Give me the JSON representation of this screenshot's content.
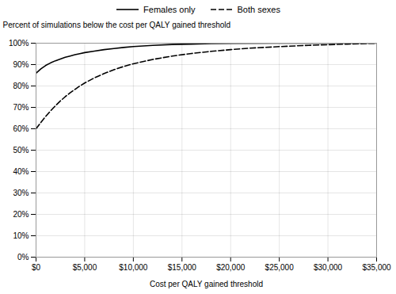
{
  "chart_data": {
    "type": "line",
    "xlabel": "Cost per QALY gained threshold",
    "ylabel": "Percent of simulations below the cost per QALY gained threshold",
    "series": [
      {
        "name": "Females only",
        "color": "#000000",
        "line_style": "solid",
        "x": [
          0,
          500,
          1000,
          1500,
          2000,
          2500,
          3000,
          3500,
          4000,
          4500,
          5000,
          6000,
          7000,
          8000,
          9000,
          10000,
          12000,
          14000,
          16000,
          18000,
          20000,
          25000,
          30000,
          35000
        ],
        "values": [
          0.86,
          0.88,
          0.896,
          0.908,
          0.918,
          0.926,
          0.934,
          0.94,
          0.946,
          0.951,
          0.956,
          0.963,
          0.97,
          0.975,
          0.98,
          0.984,
          0.99,
          0.994,
          0.996,
          0.998,
          0.999,
          1.0,
          1.0,
          1.0
        ]
      },
      {
        "name": "Both sexes",
        "color": "#000000",
        "line_style": "dashed",
        "x": [
          0,
          500,
          1000,
          1500,
          2000,
          2500,
          3000,
          3500,
          4000,
          4500,
          5000,
          6000,
          7000,
          8000,
          9000,
          10000,
          12000,
          14000,
          16000,
          18000,
          20000,
          22000,
          25000,
          28000,
          30000,
          32000,
          35000
        ],
        "values": [
          0.6,
          0.63,
          0.658,
          0.684,
          0.708,
          0.73,
          0.75,
          0.768,
          0.784,
          0.8,
          0.814,
          0.838,
          0.858,
          0.876,
          0.891,
          0.904,
          0.924,
          0.94,
          0.952,
          0.962,
          0.97,
          0.977,
          0.984,
          0.99,
          0.993,
          0.996,
          1.0
        ]
      }
    ],
    "xlim": [
      0,
      35000
    ],
    "ylim": [
      0,
      1.0
    ],
    "xticks": [
      {
        "value": 0,
        "label": "$0"
      },
      {
        "value": 5000,
        "label": "$5,000"
      },
      {
        "value": 10000,
        "label": "$10,000"
      },
      {
        "value": 15000,
        "label": "$15,000"
      },
      {
        "value": 20000,
        "label": "$20,000"
      },
      {
        "value": 25000,
        "label": "$25,000"
      },
      {
        "value": 30000,
        "label": "$30,000"
      },
      {
        "value": 35000,
        "label": "$35,000"
      }
    ],
    "yticks": [
      {
        "value": 0,
        "label": "0%"
      },
      {
        "value": 0.1,
        "label": "10%"
      },
      {
        "value": 0.2,
        "label": "20%"
      },
      {
        "value": 0.3,
        "label": "30%"
      },
      {
        "value": 0.4,
        "label": "40%"
      },
      {
        "value": 0.5,
        "label": "50%"
      },
      {
        "value": 0.6,
        "label": "60%"
      },
      {
        "value": 0.7,
        "label": "70%"
      },
      {
        "value": 0.8,
        "label": "80%"
      },
      {
        "value": 0.9,
        "label": "90%"
      },
      {
        "value": 1.0,
        "label": "100%"
      }
    ],
    "grid": true,
    "legend": "top"
  }
}
